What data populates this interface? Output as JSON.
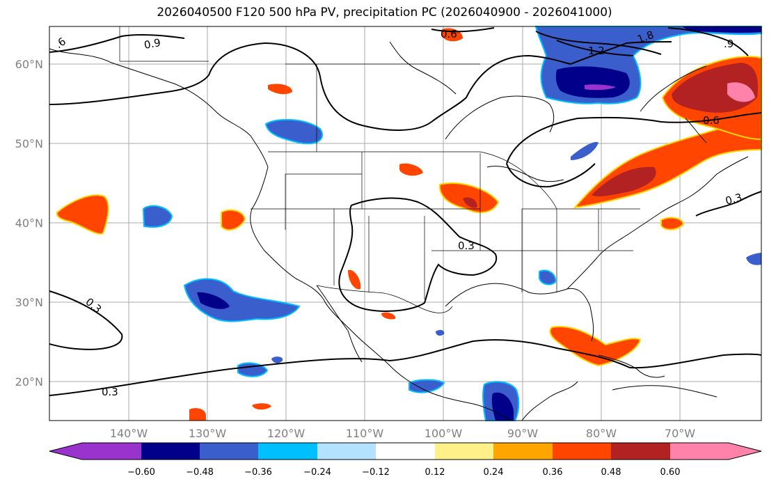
{
  "title": "2026040500 F120 500 hPa PV, precipitation PC (2026040900 - 2026041000)",
  "latitude_labels": [
    "60°N",
    "50°N",
    "40°N",
    "30°N",
    "20°N"
  ],
  "longitude_labels": [
    "140°W",
    "130°W",
    "120°W",
    "110°W",
    "100°W",
    "90°W",
    "80°W",
    "70°W"
  ],
  "contour_labels": [
    ".6",
    "0.9",
    "0.6",
    "1.2",
    "1.8",
    ".9",
    "0.6",
    "0.3",
    "0.3",
    "0.3",
    "0.3"
  ],
  "colorbar": {
    "tick_labels": [
      "−0.60",
      "−0.48",
      "−0.36",
      "−0.24",
      "−0.12",
      "0.12",
      "0.24",
      "0.36",
      "0.48",
      "0.60"
    ],
    "colors": [
      "#9a32cd",
      "#00008b",
      "#3a5fcd",
      "#00bfff",
      "#b2e2ff",
      "#ffffff",
      "#fff08a",
      "#ffa500",
      "#ff4500",
      "#b22222",
      "#ff82ab",
      "#ff82ab"
    ]
  },
  "colors": {
    "grid": "#aaaaaa",
    "coast": "#000000",
    "contour": "#000000",
    "axis_label": "#808080"
  }
}
